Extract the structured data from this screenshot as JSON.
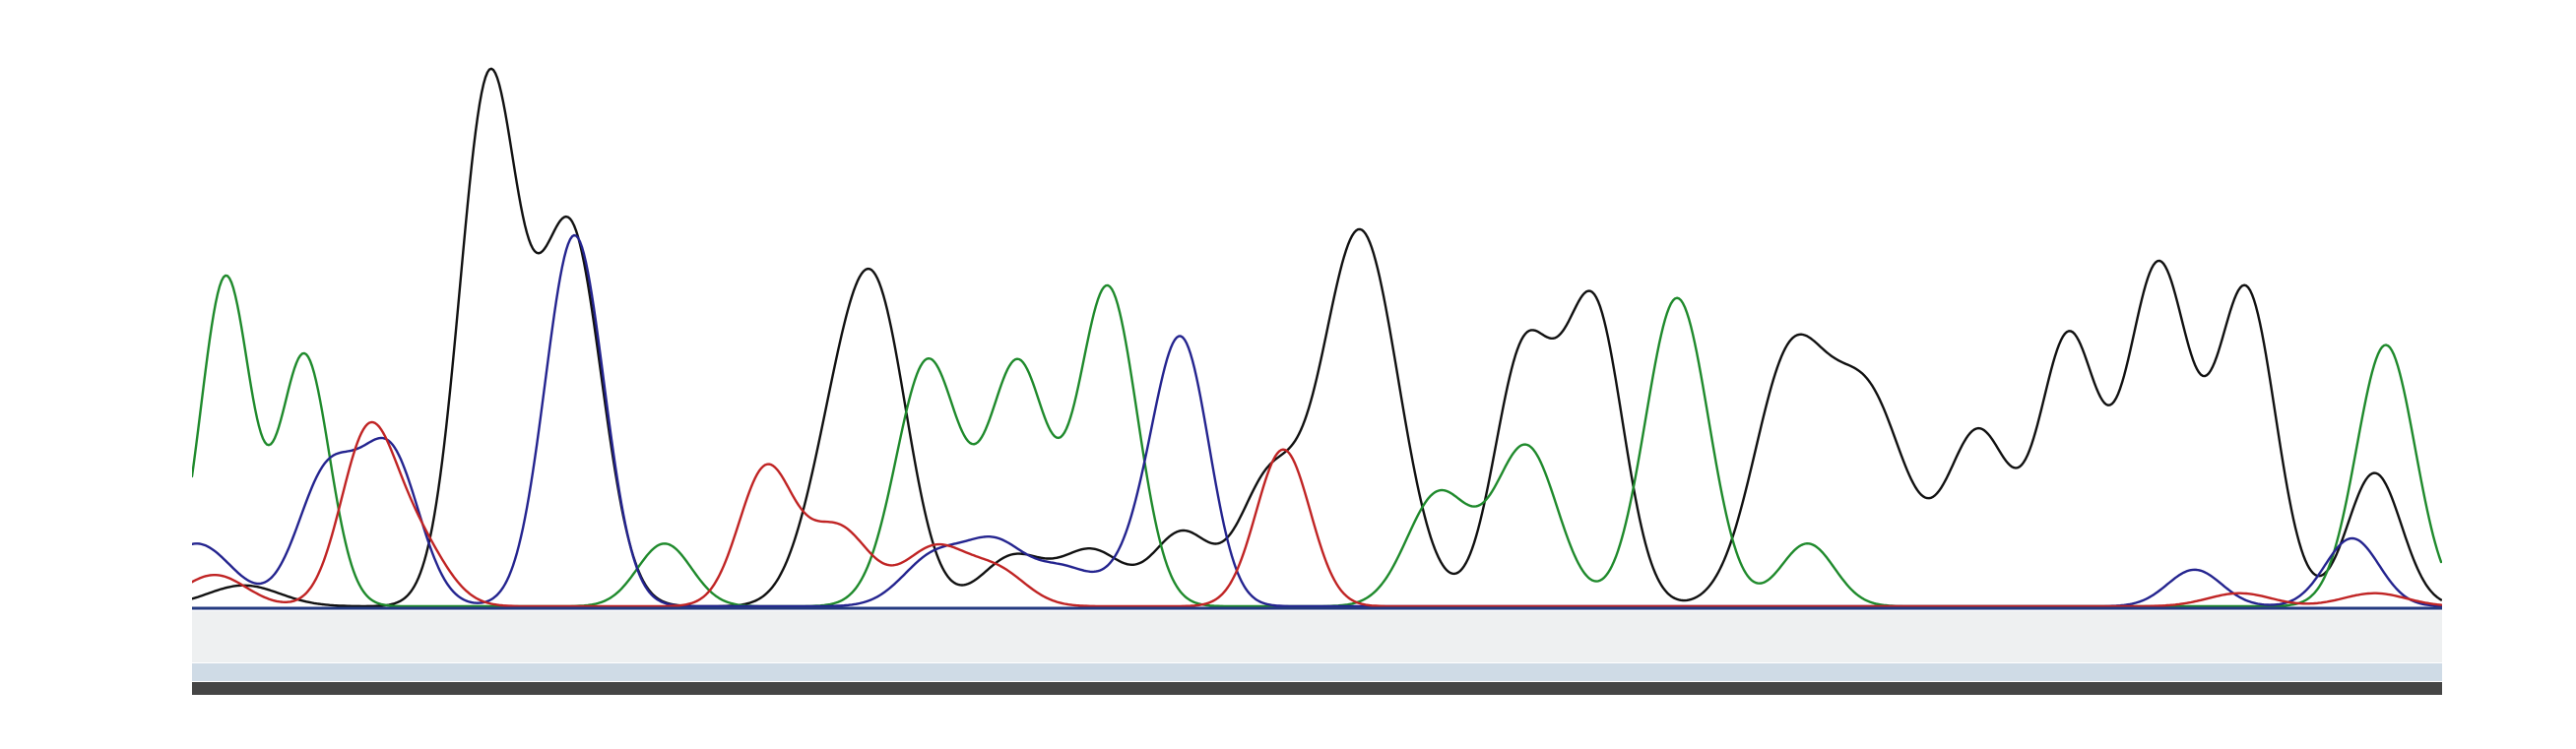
{
  "chart_data": {
    "type": "line",
    "title": "",
    "xlabel": "",
    "ylabel": "",
    "xlim": [
      0,
      1000
    ],
    "ylim": [
      0,
      1000
    ],
    "grid": false,
    "legend": "none",
    "series": [
      {
        "color": "#111111",
        "peaks": [
          [
            23,
            40,
            16
          ],
          [
            132,
            1000,
            13
          ],
          [
            168,
            720,
            14
          ],
          [
            286,
            260,
            14
          ],
          [
            305,
            520,
            14
          ],
          [
            365,
            95,
            14
          ],
          [
            400,
            105,
            14
          ],
          [
            440,
            140,
            13
          ],
          [
            478,
            225,
            13
          ],
          [
            519,
            720,
            17
          ],
          [
            592,
            485,
            13
          ],
          [
            623,
            570,
            13
          ],
          [
            710,
            460,
            16
          ],
          [
            745,
            390,
            17
          ],
          [
            794,
            330,
            14
          ],
          [
            834,
            510,
            13
          ],
          [
            874,
            650,
            14
          ],
          [
            913,
            600,
            13
          ],
          [
            970,
            255,
            12
          ]
        ]
      },
      {
        "color": "#1f8a2c",
        "peaks": [
          [
            15,
            630,
            11
          ],
          [
            50,
            480,
            11
          ],
          [
            210,
            120,
            12
          ],
          [
            327,
            470,
            14
          ],
          [
            367,
            460,
            13
          ],
          [
            407,
            610,
            13
          ],
          [
            554,
            215,
            14
          ],
          [
            593,
            305,
            14
          ],
          [
            660,
            590,
            14
          ],
          [
            718,
            120,
            12
          ],
          [
            975,
            500,
            13
          ],
          [
            1050,
            530,
            14
          ]
        ]
      },
      {
        "color": "#24248f",
        "peaks": [
          [
            2,
            120,
            16
          ],
          [
            60,
            250,
            13
          ],
          [
            88,
            290,
            13
          ],
          [
            170,
            710,
            13
          ],
          [
            330,
            95,
            14
          ],
          [
            357,
            110,
            13
          ],
          [
            387,
            70,
            14
          ],
          [
            428,
            140,
            14
          ],
          [
            441,
            420,
            12
          ],
          [
            890,
            70,
            12
          ],
          [
            960,
            130,
            12
          ]
        ]
      },
      {
        "color": "#c02424",
        "peaks": [
          [
            10,
            60,
            14
          ],
          [
            78,
            320,
            12
          ],
          [
            100,
            120,
            13
          ],
          [
            255,
            260,
            12
          ],
          [
            287,
            150,
            14
          ],
          [
            330,
            110,
            14
          ],
          [
            358,
            65,
            13
          ],
          [
            485,
            300,
            12
          ],
          [
            910,
            25,
            14
          ],
          [
            970,
            25,
            14
          ]
        ]
      }
    ]
  }
}
